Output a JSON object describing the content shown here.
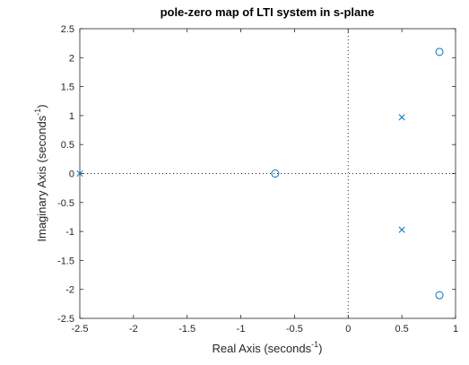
{
  "chart_data": {
    "type": "scatter",
    "title": "pole-zero map of LTI system in s-plane",
    "xlabel": {
      "text": "Real Axis (seconds",
      "sup": "-1",
      "close": ")"
    },
    "ylabel": {
      "text": "Imaginary Axis (seconds",
      "sup": "-1",
      "close": ")"
    },
    "xlim": [
      -2.5,
      1
    ],
    "ylim": [
      -2.5,
      2.5
    ],
    "xticks": [
      -2.5,
      -2,
      -1.5,
      -1,
      -0.5,
      0,
      0.5,
      1
    ],
    "xtick_labels": [
      "-2.5",
      "-2",
      "-1.5",
      "-1",
      "-0.5",
      "0",
      "0.5",
      "1"
    ],
    "yticks": [
      -2.5,
      -2,
      -1.5,
      -1,
      -0.5,
      0,
      0.5,
      1,
      1.5,
      2,
      2.5
    ],
    "ytick_labels": [
      "-2.5",
      "-2",
      "-1.5",
      "-1",
      "-0.5",
      "0",
      "0.5",
      "1",
      "1.5",
      "2",
      "2.5"
    ],
    "grid": false,
    "reference_lines": [
      "x = 0",
      "y = 0"
    ],
    "color": "#0072bd",
    "series": [
      {
        "marker": "x",
        "points": [
          {
            "x": -2.5,
            "y": 0
          },
          {
            "x": 0.5,
            "y": 0.97
          },
          {
            "x": 0.5,
            "y": -0.97
          }
        ]
      },
      {
        "marker": "o",
        "points": [
          {
            "x": -0.68,
            "y": 0
          },
          {
            "x": 0.85,
            "y": 2.1
          },
          {
            "x": 0.85,
            "y": -2.1
          }
        ]
      }
    ]
  }
}
